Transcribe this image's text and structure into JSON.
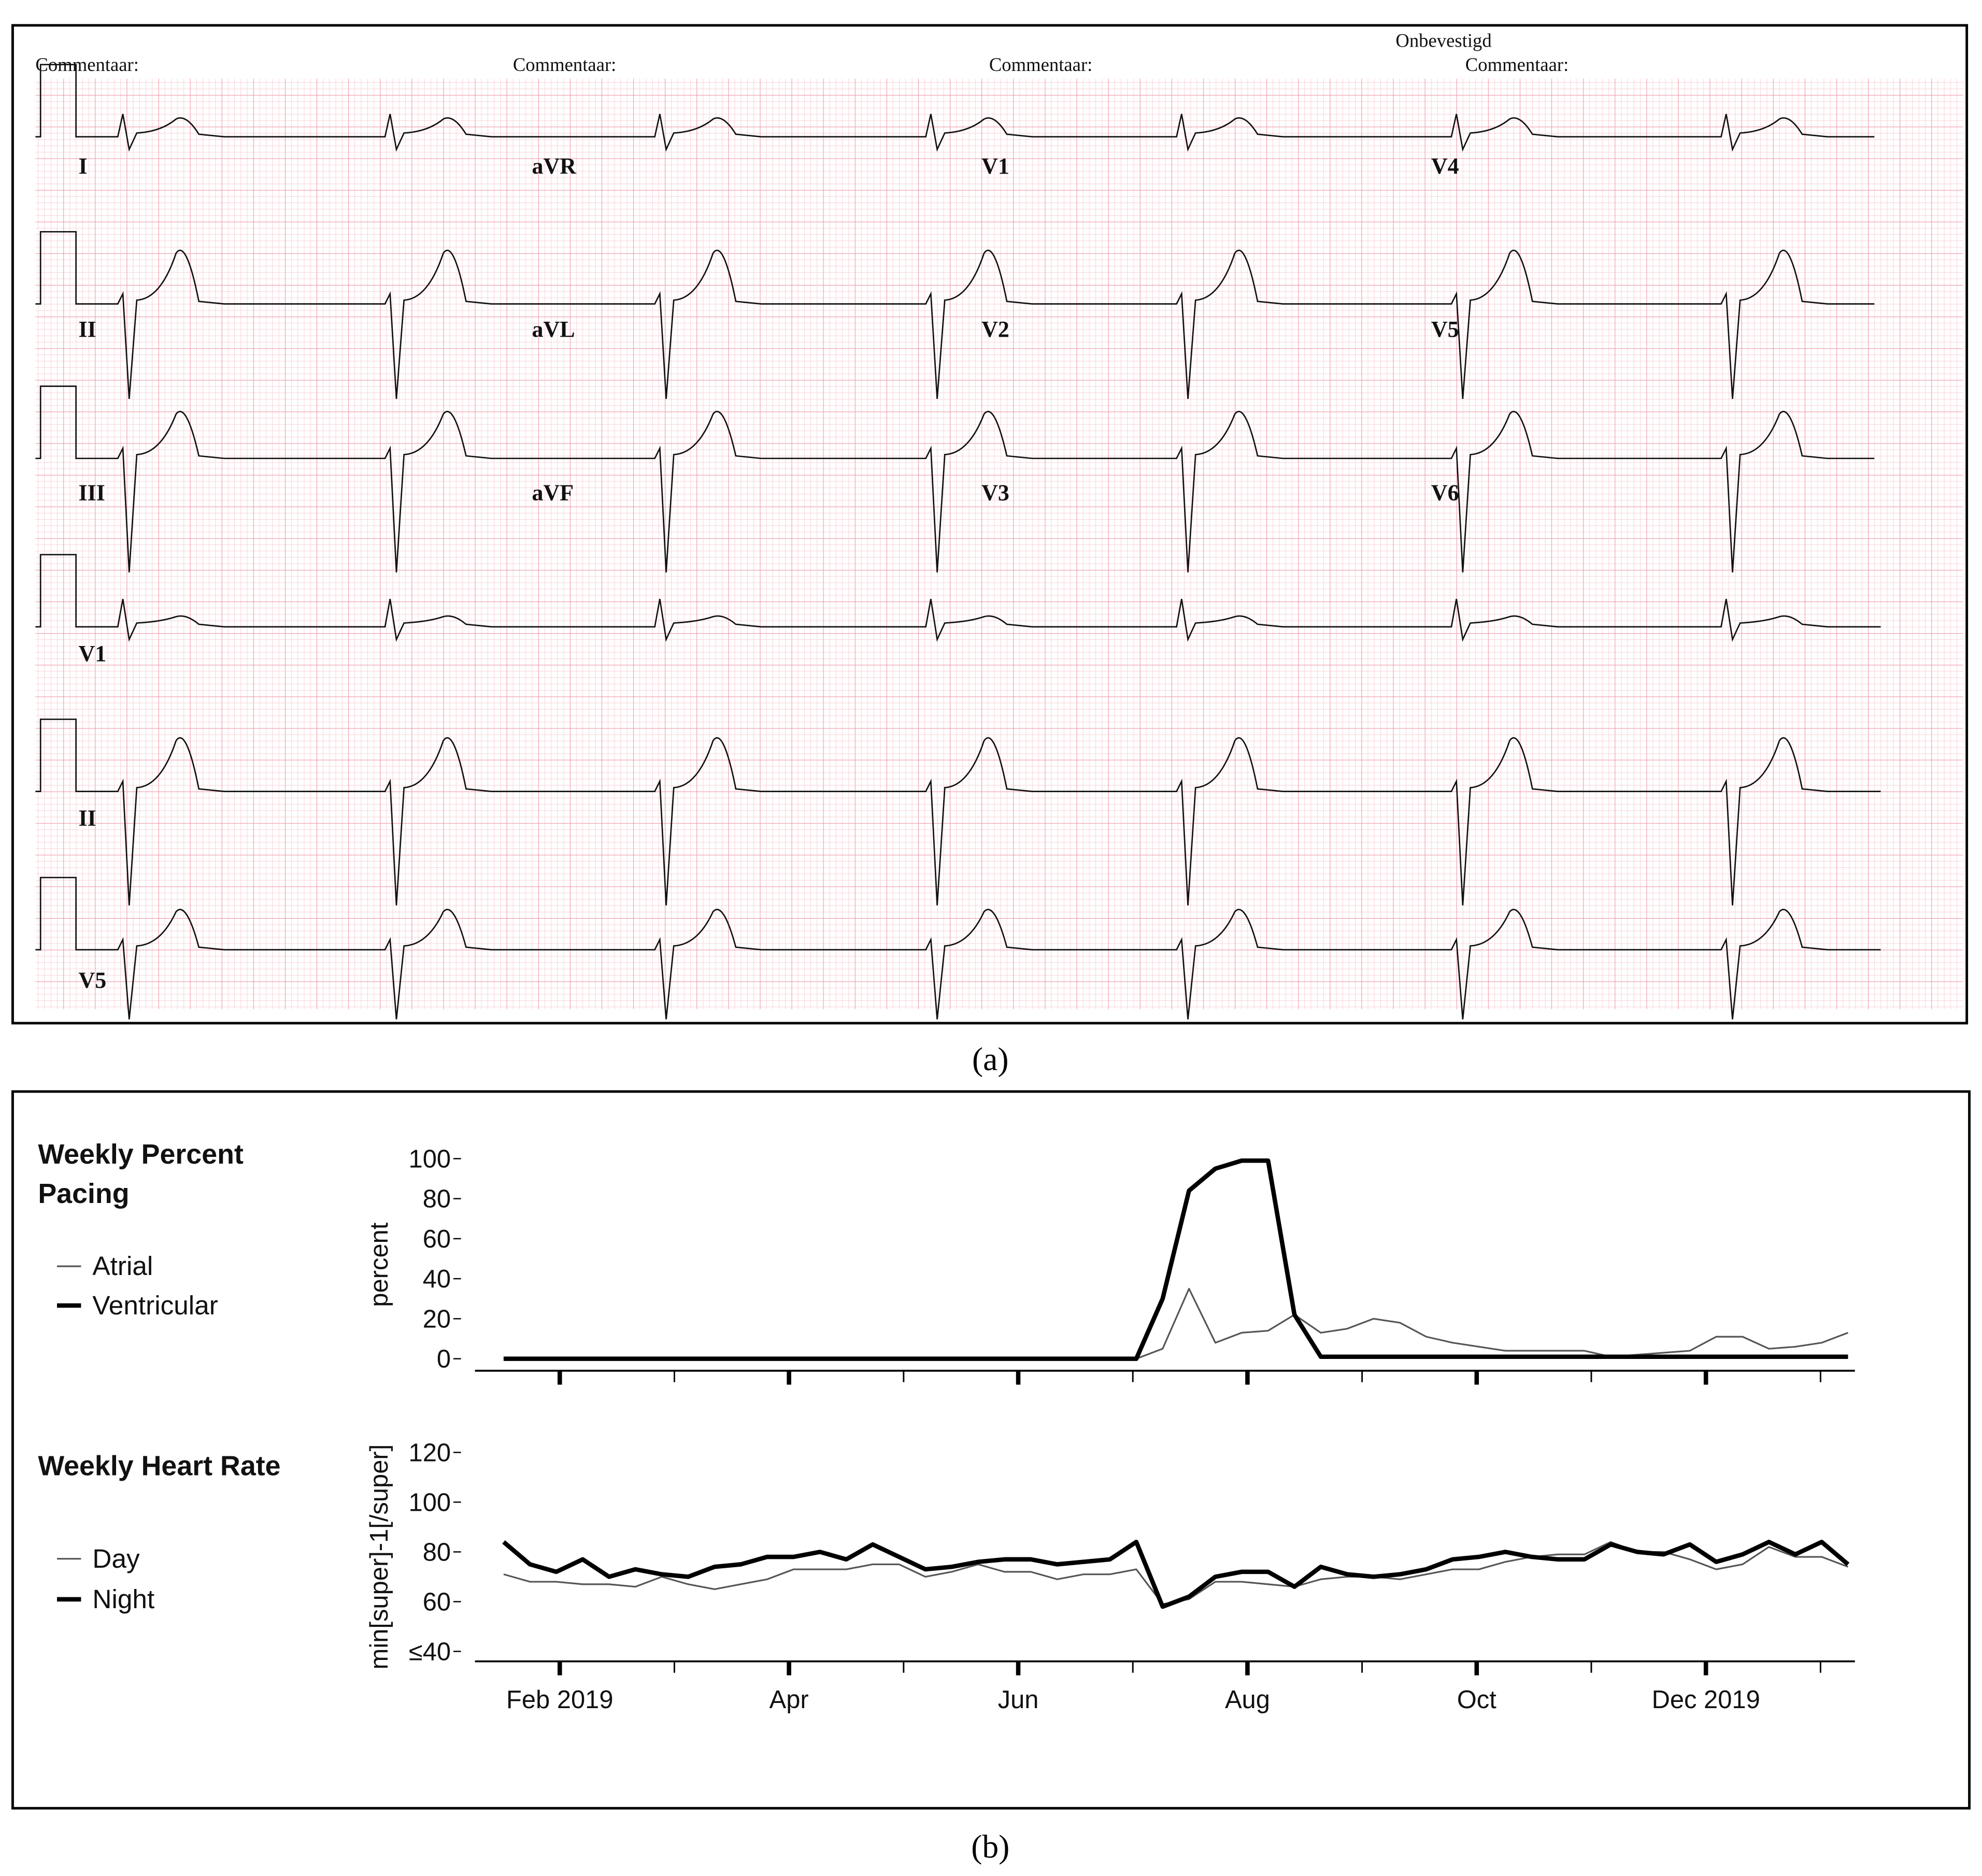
{
  "ecg": {
    "status": "Onbevestigd",
    "comments": [
      "Commentaar:",
      "Commentaar:",
      "Commentaar:",
      "Commentaar:"
    ],
    "leads": [
      [
        "I",
        "aVR",
        "V1",
        "V4"
      ],
      [
        "II",
        "aVL",
        "V2",
        "V5"
      ],
      [
        "III",
        "aVF",
        "V3",
        "V6"
      ],
      [
        "V1"
      ],
      [
        "II"
      ],
      [
        "V5"
      ]
    ]
  },
  "panel_labels": [
    "(a)",
    "(b)"
  ],
  "chart_data": [
    {
      "type": "line",
      "title": "Weekly Percent Pacing",
      "ylabel": "percent",
      "x": [
        1.51,
        1.74,
        1.97,
        2.2,
        2.43,
        2.66,
        2.89,
        3.12,
        3.35,
        3.58,
        3.81,
        4.04,
        4.27,
        4.5,
        4.73,
        4.96,
        5.19,
        5.42,
        5.65,
        5.88,
        6.11,
        6.34,
        6.57,
        6.8,
        7.03,
        7.26,
        7.49,
        7.72,
        7.95,
        8.18,
        8.41,
        8.64,
        8.87,
        9.1,
        9.33,
        9.56,
        9.79,
        10.02,
        10.25,
        10.48,
        10.71,
        10.94,
        11.17,
        11.4,
        11.63,
        11.86,
        12.09,
        12.32,
        12.55,
        12.78,
        13.01,
        13.24
      ],
      "series": [
        {
          "name": "Atrial",
          "color": "#555555",
          "width": 1.3,
          "values": [
            0,
            0,
            0,
            0,
            0,
            0,
            0,
            0,
            0,
            0,
            0,
            0,
            0,
            0,
            0,
            0,
            0,
            0,
            0,
            0,
            0,
            0,
            0,
            0,
            0,
            5,
            35,
            8,
            13,
            14,
            22,
            13,
            15,
            20,
            18,
            11,
            8,
            6,
            4,
            4,
            4,
            4,
            1,
            2,
            3,
            4,
            11,
            11,
            5,
            6,
            8,
            13
          ]
        },
        {
          "name": "Ventricular",
          "color": "#000000",
          "width": 3.5,
          "values": [
            0,
            0,
            0,
            0,
            0,
            0,
            0,
            0,
            0,
            0,
            0,
            0,
            0,
            0,
            0,
            0,
            0,
            0,
            0,
            0,
            0,
            0,
            0,
            0,
            0,
            30,
            84,
            95,
            99,
            99,
            22,
            1,
            1,
            1,
            1,
            1,
            1,
            1,
            1,
            1,
            1,
            1,
            1,
            1,
            1,
            1,
            1,
            1,
            1,
            1,
            1,
            1
          ]
        }
      ],
      "xlim": [
        1.26,
        13.3
      ],
      "ylim": [
        -6,
        100
      ],
      "yticks": [
        0,
        20,
        40,
        60,
        80,
        100
      ],
      "xmajor_marks": [
        2,
        4,
        6,
        8,
        10,
        12
      ],
      "xminor_marks": [
        3,
        5,
        7,
        9,
        11,
        13
      ]
    },
    {
      "type": "line",
      "title": "Weekly Heart Rate",
      "ylabel": "min[super]-1[/super]",
      "x": [
        1.51,
        1.74,
        1.97,
        2.2,
        2.43,
        2.66,
        2.89,
        3.12,
        3.35,
        3.58,
        3.81,
        4.04,
        4.27,
        4.5,
        4.73,
        4.96,
        5.19,
        5.42,
        5.65,
        5.88,
        6.11,
        6.34,
        6.57,
        6.8,
        7.03,
        7.26,
        7.49,
        7.72,
        7.95,
        8.18,
        8.41,
        8.64,
        8.87,
        9.1,
        9.33,
        9.56,
        9.79,
        10.02,
        10.25,
        10.48,
        10.71,
        10.94,
        11.17,
        11.4,
        11.63,
        11.86,
        12.09,
        12.32,
        12.55,
        12.78,
        13.01,
        13.24
      ],
      "series": [
        {
          "name": "Day",
          "color": "#555555",
          "width": 1.3,
          "values": [
            71,
            68,
            68,
            67,
            67,
            66,
            70,
            67,
            65,
            67,
            69,
            73,
            73,
            73,
            75,
            75,
            70,
            72,
            75,
            72,
            72,
            69,
            71,
            71,
            73,
            59,
            61,
            68,
            68,
            67,
            66,
            69,
            70,
            70,
            69,
            71,
            73,
            73,
            76,
            78,
            79,
            79,
            84,
            80,
            80,
            77,
            73,
            75,
            82,
            78,
            78,
            74
          ]
        },
        {
          "name": "Night",
          "color": "#000000",
          "width": 3.5,
          "values": [
            84,
            75,
            72,
            77,
            70,
            73,
            71,
            70,
            74,
            75,
            78,
            78,
            80,
            77,
            83,
            78,
            73,
            74,
            76,
            77,
            77,
            75,
            76,
            77,
            84,
            58,
            62,
            70,
            72,
            72,
            66,
            74,
            71,
            70,
            71,
            73,
            77,
            78,
            80,
            78,
            77,
            77,
            83,
            80,
            79,
            83,
            76,
            79,
            84,
            79,
            84,
            75
          ]
        }
      ],
      "xlim": [
        1.26,
        13.3
      ],
      "ylim": [
        36,
        120
      ],
      "yticks": [
        {
          "value": 40,
          "label": "≤40"
        },
        60,
        80,
        100,
        120
      ],
      "xticks": [
        {
          "value": 2,
          "label": "Feb 2019"
        },
        {
          "value": 4,
          "label": "Apr"
        },
        {
          "value": 6,
          "label": "Jun"
        },
        {
          "value": 8,
          "label": "Aug"
        },
        {
          "value": 10,
          "label": "Oct"
        },
        {
          "value": 12,
          "label": "Dec 2019"
        }
      ],
      "xminor_marks": [
        3,
        5,
        7,
        9,
        11,
        13
      ]
    }
  ]
}
